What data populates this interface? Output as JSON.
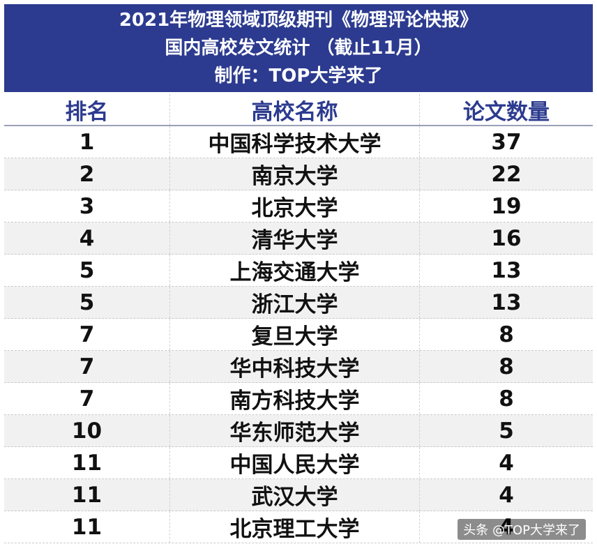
{
  "header": {
    "line1": "2021年物理领域顶级期刊《物理评论快报》",
    "line2": "国内高校发文统计 （截止11月）",
    "line3": "制作：TOP大学来了"
  },
  "table": {
    "columns": [
      "排名",
      "高校名称",
      "论文数量"
    ],
    "rows": [
      {
        "rank": "1",
        "name": "中国科学技术大学",
        "count": "37"
      },
      {
        "rank": "2",
        "name": "南京大学",
        "count": "22"
      },
      {
        "rank": "3",
        "name": "北京大学",
        "count": "19"
      },
      {
        "rank": "4",
        "name": "清华大学",
        "count": "16"
      },
      {
        "rank": "5",
        "name": "上海交通大学",
        "count": "13"
      },
      {
        "rank": "5",
        "name": "浙江大学",
        "count": "13"
      },
      {
        "rank": "7",
        "name": "复旦大学",
        "count": "8"
      },
      {
        "rank": "7",
        "name": "华中科技大学",
        "count": "8"
      },
      {
        "rank": "7",
        "name": "南方科技大学",
        "count": "8"
      },
      {
        "rank": "10",
        "name": "华东师范大学",
        "count": "5"
      },
      {
        "rank": "11",
        "name": "中国人民大学",
        "count": "4"
      },
      {
        "rank": "11",
        "name": "武汉大学",
        "count": "4"
      },
      {
        "rank": "11",
        "name": "北京理工大学",
        "count": "4"
      }
    ]
  },
  "watermark": "头条 @TOP大学来了",
  "colors": {
    "header_bg": "#2c3b8f",
    "header_text": "#ffffff",
    "column_header_text": "#2c3b8f",
    "alt_row_bg": "#f1f1f1"
  }
}
